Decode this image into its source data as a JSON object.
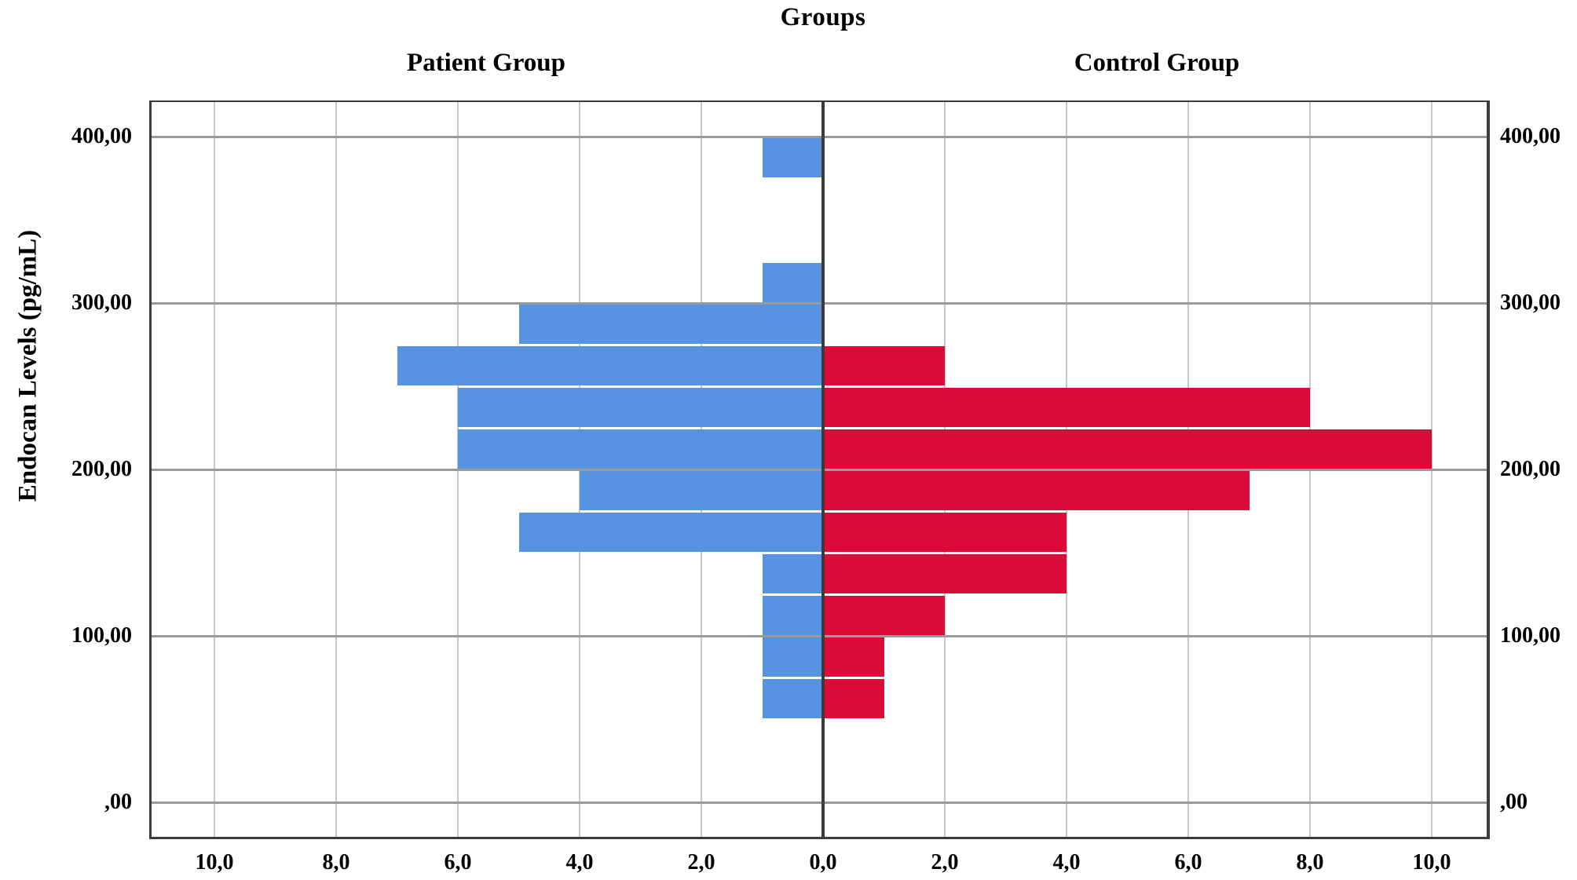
{
  "title": "Groups",
  "panel_titles": {
    "left": "Patient Group",
    "right": "Control Group"
  },
  "y_axis": {
    "title": "Endocan Levels (pg/mL)",
    "ticks": [
      {
        "value": 400,
        "label": "400,00"
      },
      {
        "value": 300,
        "label": "300,00"
      },
      {
        "value": 200,
        "label": "200,00"
      },
      {
        "value": 100,
        "label": "100,00"
      },
      {
        "value": 0,
        "label": ",00"
      }
    ]
  },
  "x_axis": {
    "center_label": "0,0",
    "side_tick_values": [
      2,
      4,
      6,
      8,
      10
    ],
    "side_tick_labels": [
      "2,0",
      "4,0",
      "6,0",
      "8,0",
      "10,0"
    ]
  },
  "colors": {
    "patient_bar": "#5793E0",
    "control_bar": "#DC0A38",
    "major_gridline": "#9a9a9a",
    "minor_gridline": "#c6c6c6",
    "axis_frame": "#3c3c3c",
    "center_axis_line": "#3a3a3a",
    "background": "#ffffff"
  },
  "chart_data": {
    "type": "bar",
    "subtype": "population-pyramid-histogram",
    "title": "Groups",
    "ylabel": "Endocan Levels (pg/mL)",
    "xlabel": "",
    "bin_width": 25,
    "bin_edges": [
      50,
      75,
      100,
      125,
      150,
      175,
      200,
      225,
      250,
      275,
      300,
      325,
      350,
      375,
      400
    ],
    "series": [
      {
        "name": "Patient Group",
        "side": "left",
        "color": "#5793E0",
        "counts": [
          1,
          1,
          1,
          1,
          5,
          4,
          6,
          6,
          7,
          5,
          1,
          0,
          0,
          1
        ]
      },
      {
        "name": "Control Group",
        "side": "right",
        "color": "#DC0A38",
        "counts": [
          1,
          1,
          2,
          4,
          4,
          7,
          10,
          8,
          2,
          0,
          0,
          0,
          0,
          0
        ]
      }
    ],
    "x_range_per_side": [
      0,
      11
    ],
    "y_range": [
      -22,
      443
    ],
    "grid": true,
    "legend_position": "none"
  }
}
